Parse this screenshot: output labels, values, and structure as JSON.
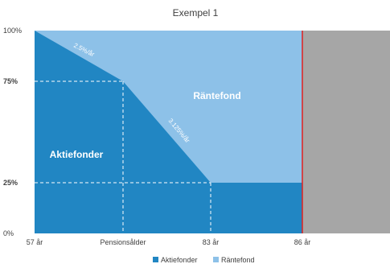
{
  "chart_data": {
    "type": "area",
    "title": "Exempel 1",
    "x_ticks": [
      "57 år",
      "Pensionsålder",
      "83 år",
      "86 år"
    ],
    "y_ticks": [
      {
        "label": "100%",
        "value": 100,
        "bold": false
      },
      {
        "label": "75%",
        "value": 75,
        "bold": true
      },
      {
        "label": "25%",
        "value": 25,
        "bold": true
      },
      {
        "label": "0%",
        "value": 0,
        "bold": false
      }
    ],
    "ylim": [
      0,
      100
    ],
    "series": [
      {
        "name": "Aktiefonder",
        "color": "#2186C3",
        "points": [
          {
            "x": "57 år",
            "y": 100
          },
          {
            "x": "Pensionsålder",
            "y": 75
          },
          {
            "x": "83 år",
            "y": 25
          },
          {
            "x": "86 år",
            "y": 25
          }
        ]
      },
      {
        "name": "Räntefond",
        "color": "#8DC1E8"
      }
    ],
    "region_labels": [
      "Aktiefonder",
      "Räntefond"
    ],
    "rate_annotations": [
      "2.5%/år",
      "3.125%/år"
    ],
    "marker_line": {
      "x": "86 år",
      "color": "#E02020"
    },
    "after_marker_color": "#A6A6A6",
    "legend": {
      "position": "bottom",
      "entries": [
        "Aktiefonder",
        "Räntefond"
      ]
    }
  }
}
